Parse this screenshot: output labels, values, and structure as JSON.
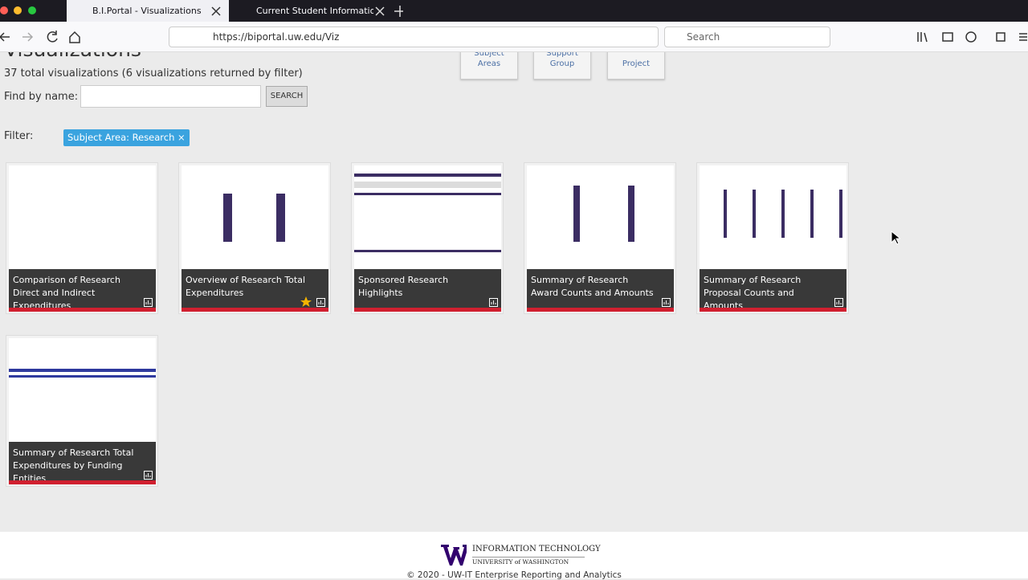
{
  "browser": {
    "tabs": [
      "B.I.Portal - Visualizations",
      "Current Student Information -"
    ],
    "url": "https://biportal.uw.edu/Viz",
    "search_placeholder": "Search"
  },
  "page": {
    "title": "Visualizations",
    "count_text": "37 total visualizations (6 visualizations returned by filter)",
    "find_label": "Find by name:",
    "search_button": "SEARCH",
    "filter_label": "Filter:",
    "filter_tag": "Subject Area: Research",
    "filter_remove": "×",
    "nav_buttons": [
      "Subject Areas",
      "Support Group",
      "Project"
    ]
  },
  "cards": [
    {
      "title": "Comparison of Research Direct and Indirect Expenditures",
      "favorite": false
    },
    {
      "title": "Overview of Research Total Expenditures",
      "favorite": true
    },
    {
      "title": "Sponsored Research Highlights",
      "favorite": false
    },
    {
      "title": "Summary of Research Award Counts and Amounts",
      "favorite": false
    },
    {
      "title": "Summary of Research Proposal Counts and Amounts",
      "favorite": false
    },
    {
      "title": "Summary of Research Total Expenditures by Funding Entities",
      "favorite": false
    }
  ],
  "footer": {
    "logo_title": "INFORMATION TECHNOLOGY",
    "logo_subtitle": "UNIVERSITY of WASHINGTON",
    "copyright": "© 2020 - UW-IT Enterprise Reporting and Analytics"
  }
}
